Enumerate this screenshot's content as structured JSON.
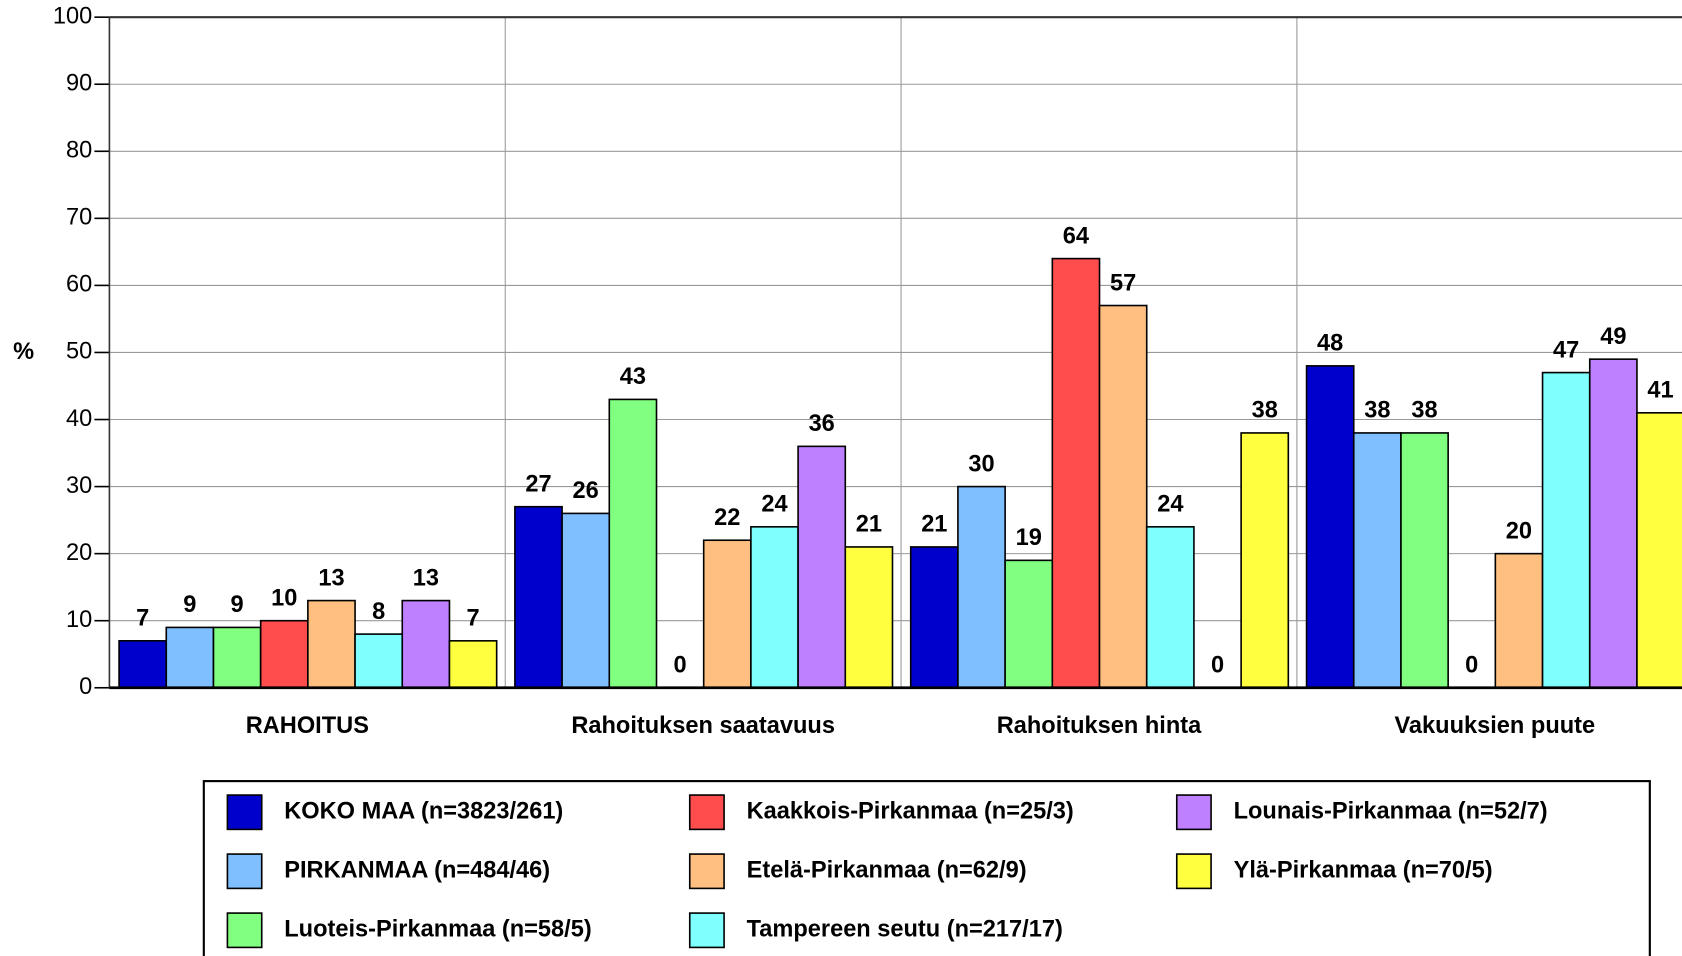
{
  "chart_data": {
    "type": "bar",
    "y_label": "%",
    "categories": [
      "RAHOITUS",
      "Rahoituksen saatavuus",
      "Rahoituksen hinta",
      "Vakuuksien puute"
    ],
    "series": [
      {
        "name": "KOKO MAA (n=3823/261)",
        "color": "#0000cc",
        "values": [
          7,
          27,
          21,
          48
        ]
      },
      {
        "name": "PIRKANMAA (n=484/46)",
        "color": "#80bfff",
        "values": [
          9,
          26,
          30,
          38
        ]
      },
      {
        "name": "Luoteis-Pirkanmaa (n=58/5)",
        "color": "#80ff80",
        "values": [
          9,
          43,
          19,
          38
        ]
      },
      {
        "name": "Kaakkois-Pirkanmaa (n=25/3)",
        "color": "#ff4d4d",
        "values": [
          10,
          0,
          64,
          0
        ]
      },
      {
        "name": "Etelä-Pirkanmaa (n=62/9)",
        "color": "#ffbf80",
        "values": [
          13,
          22,
          57,
          20
        ]
      },
      {
        "name": "Tampereen seutu (n=217/17)",
        "color": "#80ffff",
        "values": [
          8,
          24,
          24,
          47
        ]
      },
      {
        "name": "Lounais-Pirkanmaa (n=52/7)",
        "color": "#bf80ff",
        "values": [
          13,
          36,
          0,
          49
        ]
      },
      {
        "name": "Ylä-Pirkanmaa (n=70/5)",
        "color": "#ffff40",
        "values": [
          7,
          21,
          38,
          41
        ]
      }
    ],
    "ylim": [
      0,
      100
    ],
    "yticks": [
      0,
      10,
      20,
      30,
      40,
      50,
      60,
      70,
      80,
      90,
      100
    ],
    "grid": true
  }
}
